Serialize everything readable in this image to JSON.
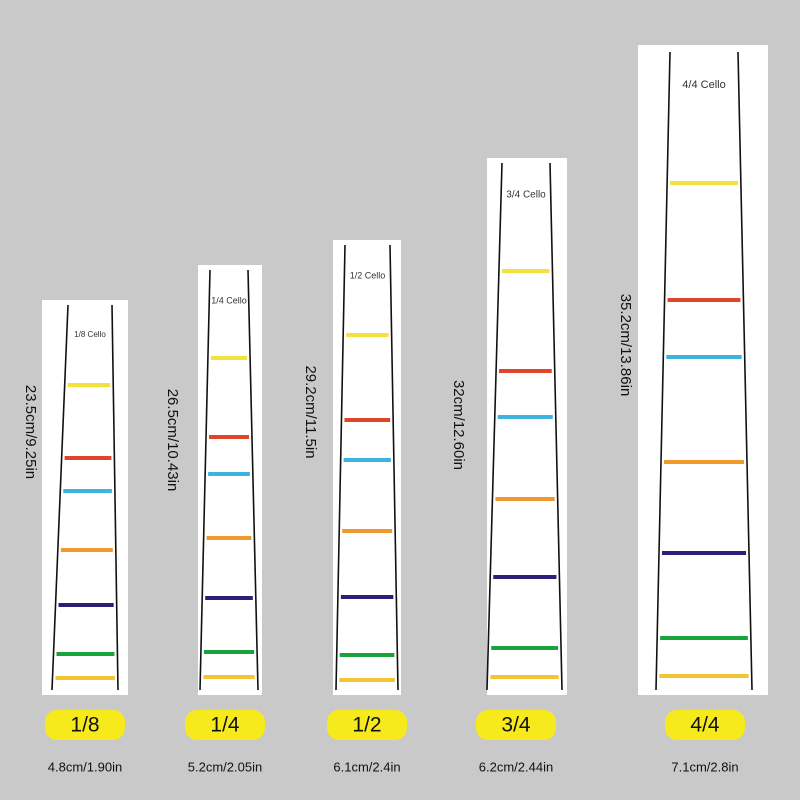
{
  "items": [
    {
      "sticker_label": "1/8 Cello",
      "length": "23.5cm/9.25in",
      "size": "1/8",
      "width": "4.8cm/1.90in"
    },
    {
      "sticker_label": "1/4 Cello",
      "length": "26.5cm/10.43in",
      "size": "1/4",
      "width": "5.2cm/2.05in"
    },
    {
      "sticker_label": "1/2 Cello",
      "length": "29.2cm/11.5in",
      "size": "1/2",
      "width": "6.1cm/2.4in"
    },
    {
      "sticker_label": "3/4 Cello",
      "length": "32cm/12.60in",
      "size": "3/4",
      "width": "6.2cm/2.44in"
    },
    {
      "sticker_label": "4/4 Cello",
      "length": "35.2cm/13.86in",
      "size": "4/4",
      "width": "7.1cm/2.8in"
    }
  ]
}
